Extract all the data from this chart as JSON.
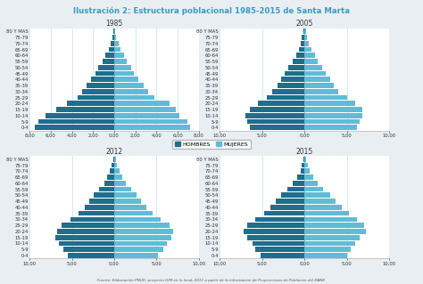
{
  "title": "Ilustración 2: Estructura poblacional 1985-2015 de Santa Marta",
  "title_color": "#3a9dbf",
  "footnote": "Fuente: Elaboración PNUD- proyecto OIM en lo local, 2011 a partir de la información de Proyecciones de Población del DANE",
  "years": [
    "1985",
    "2005",
    "2012",
    "2015"
  ],
  "age_groups": [
    "0-4",
    "5-9",
    "10-14",
    "15-19",
    "20-24",
    "25-29",
    "30-34",
    "35-39",
    "40-44",
    "45-49",
    "50-54",
    "55-59",
    "60-64",
    "65-69",
    "70-74",
    "75-79",
    "80 Y MAS"
  ],
  "xlims": {
    "1985": 8.0,
    "2005": 10.0,
    "2012": 10.0,
    "2015": 10.0
  },
  "xticks": {
    "1985": [
      -8,
      -6,
      -4,
      -2,
      0,
      2,
      4,
      6,
      8
    ],
    "2005": [
      -10,
      -5,
      0,
      5,
      10
    ],
    "2012": [
      -10,
      -5,
      0,
      5,
      10
    ],
    "2015": [
      -10,
      -5,
      0,
      5,
      10
    ]
  },
  "xtick_labels": {
    "1985": [
      "8,00",
      "6,00",
      "4,00",
      "2,00",
      "0,00",
      "2,00",
      "4,00",
      "6,00",
      "8,00"
    ],
    "2005": [
      "10,00",
      "5,00",
      "0,00",
      "5,00",
      "10,00"
    ],
    "2012": [
      "10,00",
      "5,00",
      "0,00",
      "5,00",
      "10,00"
    ],
    "2015": [
      "10,00",
      "5,00",
      "0,00",
      "5,00",
      "10,00"
    ]
  },
  "data": {
    "1985": {
      "male": [
        7.5,
        7.2,
        6.5,
        5.5,
        4.5,
        3.5,
        3.0,
        2.6,
        2.2,
        1.8,
        1.5,
        1.1,
        0.8,
        0.5,
        0.3,
        0.2,
        0.1
      ],
      "female": [
        7.2,
        6.9,
        6.2,
        5.8,
        5.2,
        3.8,
        3.2,
        2.8,
        2.3,
        1.9,
        1.6,
        1.2,
        0.9,
        0.6,
        0.4,
        0.2,
        0.1
      ]
    },
    "2005": {
      "male": [
        6.5,
        6.8,
        7.0,
        6.5,
        5.5,
        4.5,
        3.8,
        3.2,
        2.8,
        2.3,
        1.9,
        1.4,
        1.0,
        0.7,
        0.4,
        0.3,
        0.1
      ],
      "female": [
        6.2,
        6.5,
        6.8,
        6.8,
        6.0,
        5.0,
        4.0,
        3.4,
        3.0,
        2.5,
        2.1,
        1.6,
        1.2,
        0.8,
        0.5,
        0.3,
        0.2
      ]
    },
    "2012": {
      "male": [
        5.5,
        6.0,
        6.5,
        7.0,
        6.8,
        6.2,
        5.2,
        4.2,
        3.5,
        3.0,
        2.4,
        1.8,
        1.2,
        0.8,
        0.5,
        0.3,
        0.1
      ],
      "female": [
        5.2,
        5.8,
        6.2,
        6.8,
        7.0,
        6.5,
        5.5,
        4.5,
        3.8,
        3.2,
        2.6,
        2.0,
        1.4,
        0.9,
        0.6,
        0.3,
        0.2
      ]
    },
    "2015": {
      "male": [
        5.2,
        5.8,
        6.2,
        6.8,
        7.2,
        6.8,
        5.8,
        4.8,
        4.0,
        3.4,
        2.8,
        2.0,
        1.4,
        0.9,
        0.5,
        0.3,
        0.1
      ],
      "female": [
        5.0,
        5.5,
        6.0,
        6.5,
        7.2,
        7.0,
        6.2,
        5.2,
        4.4,
        3.7,
        3.0,
        2.2,
        1.6,
        1.0,
        0.6,
        0.4,
        0.2
      ]
    }
  },
  "male_color": "#1e6e8e",
  "female_color": "#60bcd6",
  "background_color": "#e8eef2",
  "plot_bg": "#ffffff",
  "grid_color": "#b8d4e4",
  "bar_height": 0.85,
  "tick_fontsize": 3.8,
  "label_color": "#333333",
  "legend_male": "HOMBRES",
  "legend_female": "MUJERES",
  "subplot_title_fontsize": 5.5,
  "subplot_title_color": "#333333"
}
